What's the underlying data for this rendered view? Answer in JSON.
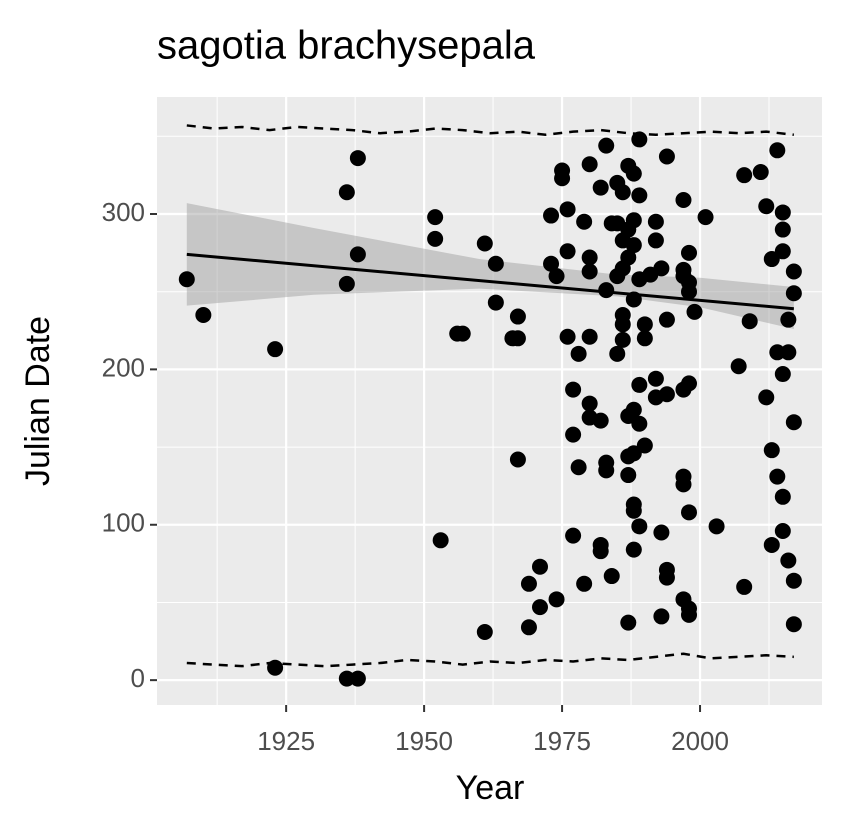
{
  "chart_data": {
    "type": "scatter",
    "title": "sagotia brachysepala",
    "xlabel": "Year",
    "ylabel": "Julian Date",
    "xlim": [
      1901.6,
      2022.1
    ],
    "ylim": [
      -16,
      375.3
    ],
    "xticks": [
      1925,
      1950,
      1975,
      2000
    ],
    "yticks": [
      0,
      100,
      200,
      300
    ],
    "xminor": [
      1912.5,
      1937.5,
      1962.5,
      1987.5,
      2012.5
    ],
    "yminor": [
      50,
      150,
      250,
      350
    ],
    "grid": true,
    "color": "#000000",
    "x": [
      1907,
      1910,
      1923,
      1923,
      1936,
      1936,
      1938,
      1938,
      1936,
      1938,
      1952,
      1952,
      1953,
      1957,
      1956,
      1961,
      1963,
      1963,
      1961,
      1967,
      1966,
      1967,
      1967,
      1969,
      1969,
      1971,
      1971,
      1973,
      1973,
      1974,
      1974,
      1975,
      1975,
      1976,
      1976,
      1976,
      1977,
      1977,
      1977,
      1978,
      1978,
      1979,
      1979,
      1980,
      1980,
      1980,
      1980,
      1980,
      1980,
      1982,
      1982,
      1983,
      1983,
      1983,
      1982,
      1982,
      1983,
      1984,
      1984,
      1985,
      1985,
      1985,
      1985,
      1986,
      1986,
      1986,
      1986,
      1986,
      1986,
      1987,
      1987,
      1987,
      1987,
      1987,
      1987,
      1987,
      1988,
      1988,
      1988,
      1988,
      1988,
      1988,
      1988,
      1988,
      1988,
      1989,
      1989,
      1989,
      1989,
      1989,
      1989,
      1990,
      1990,
      1990,
      1991,
      1992,
      1992,
      1992,
      1992,
      1993,
      1993,
      1993,
      1994,
      1994,
      1994,
      1994,
      1994,
      1997,
      1997,
      1997,
      1997,
      1997,
      1997,
      1997,
      1998,
      1998,
      1998,
      1998,
      1998,
      1998,
      1998,
      1999,
      2001,
      2003,
      2007,
      2008,
      2008,
      2009,
      2011,
      2012,
      2012,
      2013,
      2013,
      2013,
      2014,
      2014,
      2014,
      2015,
      2015,
      2015,
      2015,
      2015,
      2015,
      2016,
      2016,
      2016,
      2017,
      2017,
      2017,
      2017,
      2017
    ],
    "y": [
      258,
      235,
      213,
      8,
      314,
      255,
      336,
      274,
      1,
      1,
      298,
      284,
      90,
      223,
      223,
      281,
      268,
      243,
      31,
      234,
      220,
      220,
      142,
      62,
      34,
      73,
      47,
      299,
      268,
      52,
      260,
      328,
      323,
      303,
      276,
      221,
      187,
      158,
      93,
      210,
      137,
      295,
      62,
      178,
      169,
      332,
      272,
      263,
      221,
      167,
      317,
      251,
      140,
      135,
      87,
      83,
      344,
      294,
      67,
      320,
      210,
      294,
      260,
      314,
      283,
      265,
      235,
      229,
      219,
      331,
      290,
      272,
      144,
      132,
      170,
      37,
      326,
      296,
      280,
      245,
      174,
      146,
      113,
      109,
      84,
      348,
      312,
      258,
      190,
      165,
      99,
      229,
      220,
      151,
      261,
      295,
      283,
      194,
      182,
      265,
      95,
      41,
      184,
      232,
      337,
      71,
      66,
      309,
      264,
      260,
      187,
      131,
      126,
      52,
      46,
      275,
      256,
      250,
      191,
      108,
      42,
      237,
      298,
      99,
      202,
      325,
      60,
      231,
      327,
      182,
      305,
      271,
      87,
      148,
      341,
      211,
      131,
      301,
      290,
      276,
      197,
      118,
      96,
      232,
      211,
      77,
      263,
      249,
      166,
      64,
      36
    ],
    "trend": {
      "x": [
        1907,
        2017
      ],
      "y": [
        274,
        239
      ]
    },
    "band": {
      "x": [
        1907,
        1930,
        1960,
        1985,
        2000,
        2017
      ],
      "lower": [
        241,
        248,
        252,
        247,
        240,
        226
      ],
      "upper": [
        307,
        291,
        271,
        261,
        259,
        253
      ]
    },
    "quantiles": {
      "x": [
        1907,
        1912,
        1917,
        1922,
        1927,
        1932,
        1937,
        1942,
        1947,
        1952,
        1957,
        1962,
        1967,
        1972,
        1977,
        1982,
        1987,
        1992,
        1997,
        2002,
        2007,
        2012,
        2017
      ],
      "upper": [
        357,
        355,
        356,
        354,
        356,
        355,
        354,
        352,
        353,
        355,
        354,
        352,
        353,
        351,
        353,
        354,
        352,
        351,
        352,
        353,
        352,
        353,
        351
      ],
      "lower": [
        11,
        10,
        9,
        11,
        10,
        9,
        10,
        11,
        13,
        12,
        10,
        12,
        11,
        13,
        12,
        14,
        13,
        15,
        17,
        14,
        15,
        16,
        15
      ]
    }
  }
}
